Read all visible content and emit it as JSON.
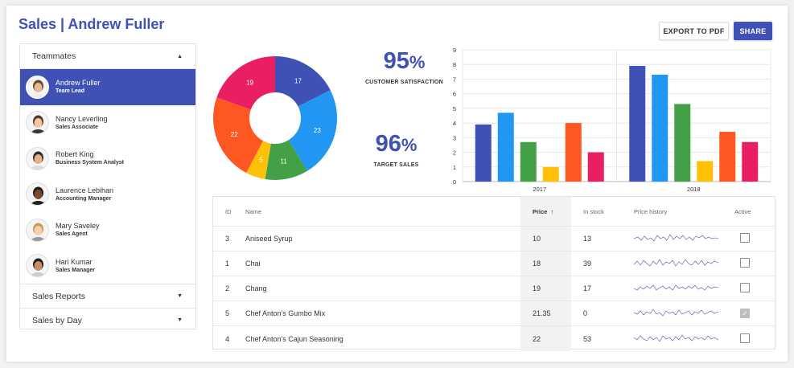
{
  "header": {
    "title": "Sales | Andrew Fuller",
    "export_label": "EXPORT TO PDF",
    "share_label": "SHARE"
  },
  "sidebar": {
    "teammates_label": "Teammates",
    "members": [
      {
        "name": "Andrew Fuller",
        "role": "Team Lead"
      },
      {
        "name": "Nancy Leverling",
        "role": "Sales Associate"
      },
      {
        "name": "Robert King",
        "role": "Business System Analyst"
      },
      {
        "name": "Laurence Lebihan",
        "role": "Accounting Manager"
      },
      {
        "name": "Mary Saveley",
        "role": "Sales Agent"
      },
      {
        "name": "Hari Kumar",
        "role": "Sales Manager"
      }
    ],
    "sales_reports_label": "Sales Reports",
    "sales_by_day_label": "Sales by Day"
  },
  "kpis": [
    {
      "value": "95",
      "unit": "%",
      "label": "CUSTOMER SATISFACTION"
    },
    {
      "value": "96",
      "unit": "%",
      "label": "TARGET SALES"
    }
  ],
  "chart_data": [
    {
      "type": "pie",
      "donut": true,
      "categories": [
        "blue",
        "light blue",
        "green",
        "yellow",
        "orange",
        "pink"
      ],
      "values": [
        17,
        23,
        11,
        5,
        22,
        19
      ],
      "colors": [
        "#3f51b5",
        "#2196f3",
        "#43a047",
        "#ffc107",
        "#ff5722",
        "#e91e63"
      ]
    },
    {
      "type": "bar",
      "categories": [
        "2017",
        "2018"
      ],
      "series": [
        {
          "name": "blue",
          "color": "#3f51b5",
          "values": [
            3.9,
            7.9
          ]
        },
        {
          "name": "light blue",
          "color": "#2196f3",
          "values": [
            4.7,
            7.3
          ]
        },
        {
          "name": "green",
          "color": "#43a047",
          "values": [
            2.7,
            5.3
          ]
        },
        {
          "name": "yellow",
          "color": "#ffc107",
          "values": [
            1.0,
            1.4
          ]
        },
        {
          "name": "orange",
          "color": "#ff5722",
          "values": [
            4.0,
            3.4
          ]
        },
        {
          "name": "pink",
          "color": "#e91e63",
          "values": [
            2.0,
            2.7
          ]
        }
      ],
      "yticks": [
        "0",
        "1",
        "2",
        "3",
        "4",
        "5",
        "6",
        "7",
        "8",
        "9"
      ],
      "ylim": [
        0,
        9
      ]
    }
  ],
  "grid": {
    "columns": {
      "id": "ID",
      "name": "Name",
      "price": "Price",
      "sort": "↑",
      "stock": "In stock",
      "history": "Price history",
      "active": "Active"
    },
    "rows": [
      {
        "id": "3",
        "name": "Aniseed Syrup",
        "price": "10",
        "stock": "13",
        "active": false
      },
      {
        "id": "1",
        "name": "Chai",
        "price": "18",
        "stock": "39",
        "active": false
      },
      {
        "id": "2",
        "name": "Chang",
        "price": "19",
        "stock": "17",
        "active": false
      },
      {
        "id": "5",
        "name": "Chef Anton's Gumbo Mix",
        "price": "21.35",
        "stock": "0",
        "active": true
      },
      {
        "id": "4",
        "name": "Chef Anton's Cajun Seasoning",
        "price": "22",
        "stock": "53",
        "active": false
      }
    ]
  }
}
